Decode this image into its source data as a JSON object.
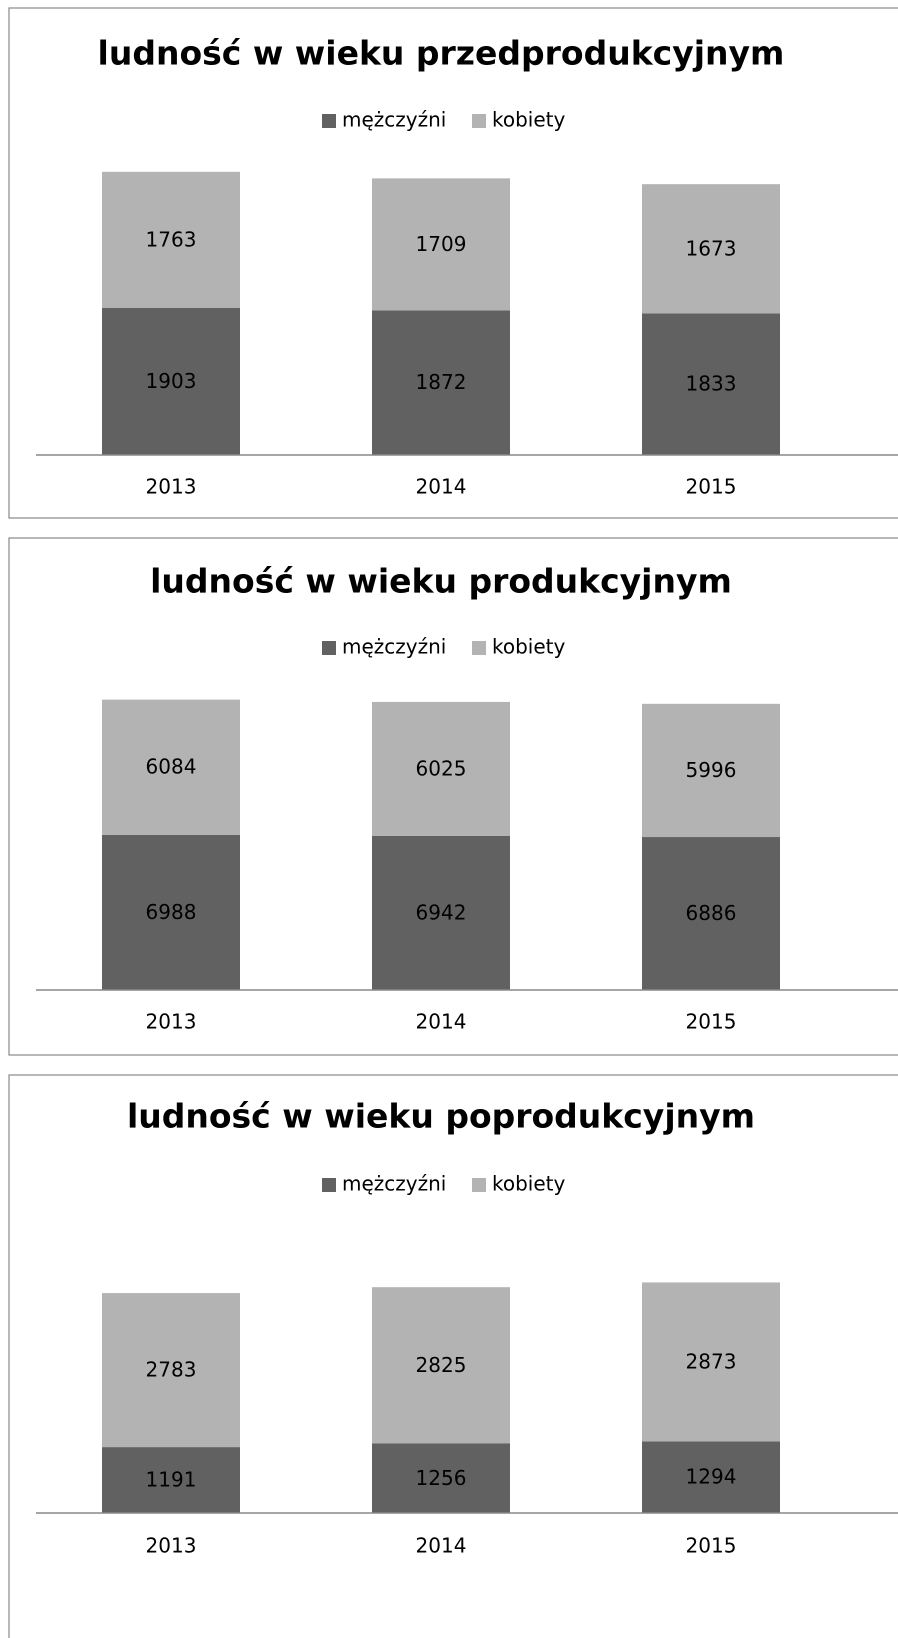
{
  "chart_data": [
    {
      "type": "bar",
      "stacked": true,
      "title": "ludność w wieku przedprodukcyjnym",
      "categories": [
        "2013",
        "2014",
        "2015"
      ],
      "series": [
        {
          "name": "mężczyźni",
          "color": "#616161",
          "values": [
            1903,
            1872,
            1833
          ]
        },
        {
          "name": "kobiety",
          "color": "#b3b3b3",
          "values": [
            1763,
            1709,
            1673
          ]
        }
      ],
      "ylim": [
        0,
        4000
      ],
      "legend": "top"
    },
    {
      "type": "bar",
      "stacked": true,
      "title": "ludność w wieku produkcyjnym",
      "categories": [
        "2013",
        "2014",
        "2015"
      ],
      "series": [
        {
          "name": "mężczyźni",
          "color": "#616161",
          "values": [
            6988,
            6942,
            6886
          ]
        },
        {
          "name": "kobiety",
          "color": "#b3b3b3",
          "values": [
            6084,
            6025,
            5996
          ]
        }
      ],
      "ylim": [
        0,
        14000
      ],
      "legend": "top"
    },
    {
      "type": "bar",
      "stacked": true,
      "title": "ludność w wieku poprodukcyjnym",
      "categories": [
        "2013",
        "2014",
        "2015"
      ],
      "series": [
        {
          "name": "mężczyźni",
          "color": "#616161",
          "values": [
            1191,
            1256,
            1294
          ]
        },
        {
          "name": "kobiety",
          "color": "#b3b3b3",
          "values": [
            2783,
            2825,
            2873
          ]
        }
      ],
      "ylim": [
        0,
        4500
      ],
      "legend": "top"
    }
  ]
}
